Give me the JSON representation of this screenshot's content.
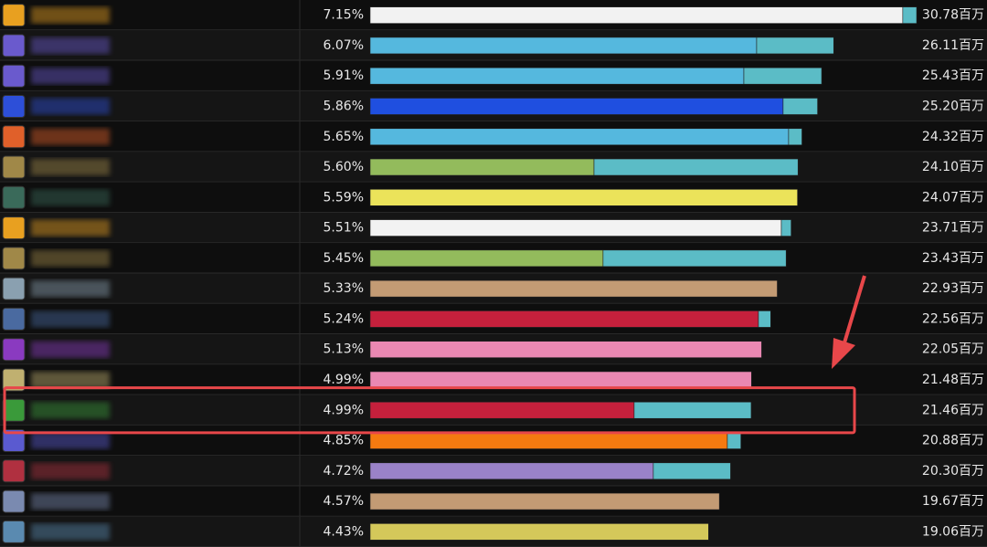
{
  "meter": {
    "rows": [
      {
        "percent": "7.15%",
        "total": "30.78百万",
        "icon_color": "#e8a020",
        "segments": [
          {
            "value": 30.0,
            "color": "#f2f2f2"
          },
          {
            "value": 0.78,
            "color": "#5bbcc6"
          }
        ]
      },
      {
        "percent": "6.07%",
        "total": "26.11百万",
        "icon_color": "#6a5acd",
        "segments": [
          {
            "value": 21.77,
            "color": "#55b8de"
          },
          {
            "value": 4.34,
            "color": "#5bbcc6"
          }
        ]
      },
      {
        "percent": "5.91%",
        "total": "25.43百万",
        "icon_color": "#6a5acd",
        "segments": [
          {
            "value": 21.05,
            "color": "#55b8de"
          },
          {
            "value": 4.38,
            "color": "#5bbcc6"
          }
        ]
      },
      {
        "percent": "5.86%",
        "total": "25.20百万",
        "icon_color": "#2d4fd8",
        "segments": [
          {
            "value": 23.26,
            "color": "#1f4fe0"
          },
          {
            "value": 1.94,
            "color": "#5bbcc6"
          }
        ]
      },
      {
        "percent": "5.65%",
        "total": "24.32百万",
        "icon_color": "#e0602a",
        "segments": [
          {
            "value": 23.57,
            "color": "#55b8de"
          },
          {
            "value": 0.75,
            "color": "#5bbcc6"
          }
        ]
      },
      {
        "percent": "5.60%",
        "total": "24.10百万",
        "icon_color": "#a08848",
        "segments": [
          {
            "value": 12.61,
            "color": "#93bb5c"
          },
          {
            "value": 11.49,
            "color": "#5bbcc6"
          }
        ]
      },
      {
        "percent": "5.59%",
        "total": "24.07百万",
        "icon_color": "#3a6a5a",
        "segments": [
          {
            "value": 24.07,
            "color": "#ebe35a"
          }
        ]
      },
      {
        "percent": "5.51%",
        "total": "23.71百万",
        "icon_color": "#e8a020",
        "segments": [
          {
            "value": 23.16,
            "color": "#f2f2f2"
          },
          {
            "value": 0.55,
            "color": "#5bbcc6"
          }
        ]
      },
      {
        "percent": "5.45%",
        "total": "23.43百万",
        "icon_color": "#a08848",
        "segments": [
          {
            "value": 13.12,
            "color": "#93bb5c"
          },
          {
            "value": 10.31,
            "color": "#5bbcc6"
          }
        ]
      },
      {
        "percent": "5.33%",
        "total": "22.93百万",
        "icon_color": "#8aa0b0",
        "segments": [
          {
            "value": 22.93,
            "color": "#c39b74"
          }
        ]
      },
      {
        "percent": "5.24%",
        "total": "22.56百万",
        "icon_color": "#4a6aa0",
        "segments": [
          {
            "value": 21.87,
            "color": "#c5203c"
          },
          {
            "value": 0.69,
            "color": "#5bbcc6"
          }
        ]
      },
      {
        "percent": "5.13%",
        "total": "22.05百万",
        "icon_color": "#8a3ac0",
        "segments": [
          {
            "value": 22.05,
            "color": "#ea88b2"
          }
        ]
      },
      {
        "percent": "4.99%",
        "total": "21.48百万",
        "icon_color": "#c0b070",
        "segments": [
          {
            "value": 21.48,
            "color": "#ea88b2"
          }
        ]
      },
      {
        "percent": "4.99%",
        "total": "21.46百万",
        "icon_color": "#3a9a3a",
        "segments": [
          {
            "value": 14.87,
            "color": "#c5203c"
          },
          {
            "value": 6.59,
            "color": "#5bbcc6"
          }
        ]
      },
      {
        "percent": "4.85%",
        "total": "20.88百万",
        "icon_color": "#5a5ad0",
        "segments": [
          {
            "value": 20.12,
            "color": "#f57a10"
          },
          {
            "value": 0.76,
            "color": "#5bbcc6"
          }
        ]
      },
      {
        "percent": "4.72%",
        "total": "20.30百万",
        "icon_color": "#b03040",
        "segments": [
          {
            "value": 15.95,
            "color": "#9a82c8"
          },
          {
            "value": 4.35,
            "color": "#5bbcc6"
          }
        ]
      },
      {
        "percent": "4.57%",
        "total": "19.67百万",
        "icon_color": "#7a8ab0",
        "segments": [
          {
            "value": 19.67,
            "color": "#c39b74"
          }
        ]
      },
      {
        "percent": "4.43%",
        "total": "19.06百万",
        "icon_color": "#5a8ab0",
        "segments": [
          {
            "value": 19.06,
            "color": "#d4c85a"
          }
        ]
      }
    ]
  }
}
